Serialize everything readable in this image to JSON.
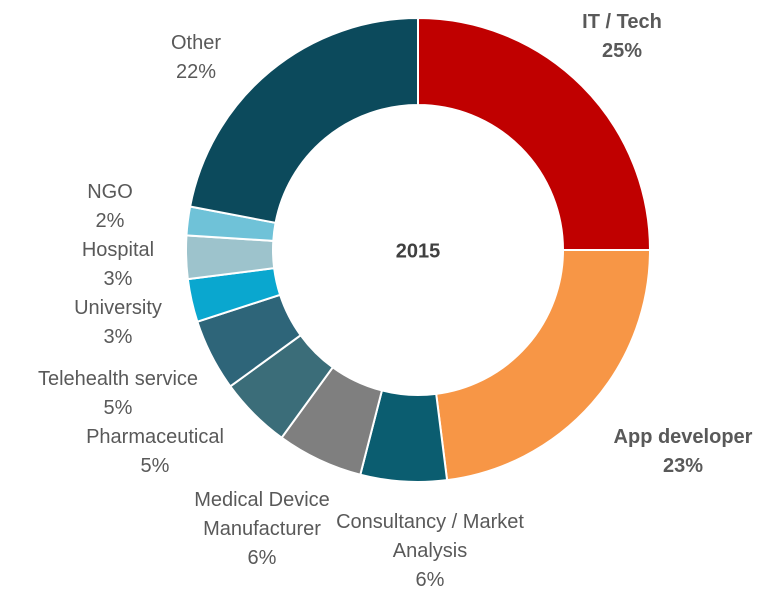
{
  "chart_data": {
    "type": "donut",
    "center_label": "2015",
    "categories": [
      "IT / Tech",
      "App developer",
      "Consultancy / Market Analysis",
      "Medical Device Manufacturer",
      "Pharmaceutical",
      "Telehealth service",
      "University",
      "Hospital",
      "NGO",
      "Other"
    ],
    "values": [
      25,
      23,
      6,
      6,
      5,
      5,
      3,
      3,
      2,
      22
    ],
    "value_labels": [
      "25%",
      "23%",
      "6%",
      "6%",
      "5%",
      "5%",
      "3%",
      "3%",
      "2%",
      "22%"
    ],
    "colors": [
      "#c00000",
      "#f79646",
      "#0b5d70",
      "#7f7f7f",
      "#3b6d79",
      "#2e6579",
      "#0aa7cf",
      "#9dc3cc",
      "#6fc2d8",
      "#0c4a5c"
    ]
  }
}
